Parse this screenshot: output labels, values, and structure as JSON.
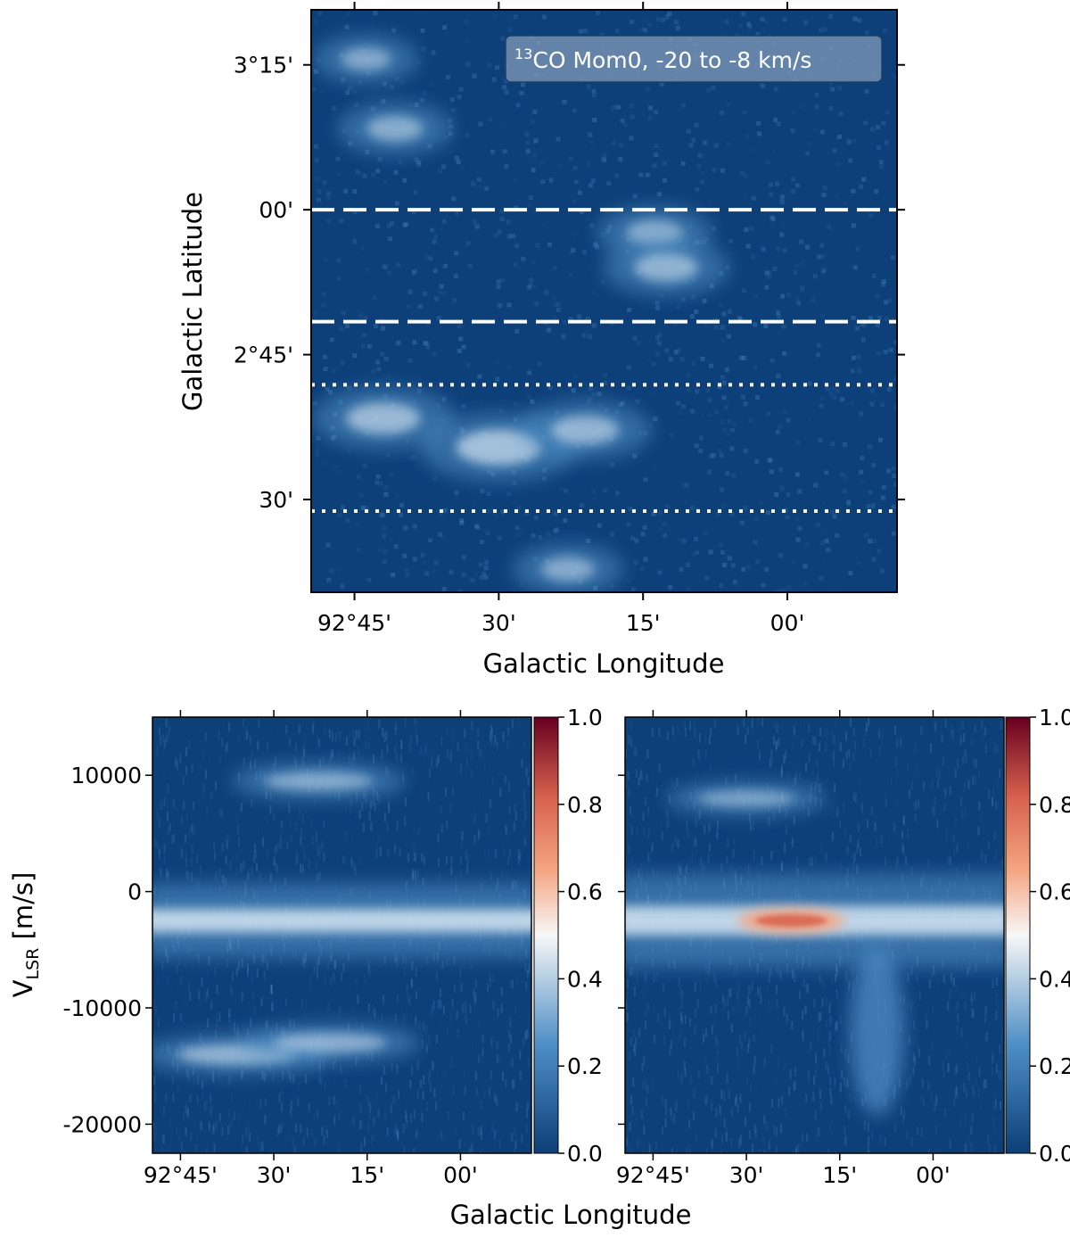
{
  "colors": {
    "map_low": "#0d3f78",
    "map_mid": "#4f8fc5",
    "map_high": "#d6e6f3",
    "white": "#f7f7f7",
    "red_mid": "#f4a582",
    "red_high": "#d6604d",
    "red_max": "#67001f"
  },
  "chart_data": [
    {
      "type": "heatmap",
      "title": "",
      "legend_text": {
        "sup": "13",
        "main": "CO Mom0, -20 to -8 km/s"
      },
      "legend_placement": "top-right",
      "xlabel": "Galactic Longitude",
      "ylabel": "Galactic Latitude",
      "x_ticks": [
        "92°45'",
        "30'",
        "15'",
        "00'"
      ],
      "y_ticks": [
        "3°15'",
        "00'",
        "2°45'",
        "30'"
      ],
      "x_tick_values_deg": [
        92.75,
        92.5,
        92.25,
        92.0
      ],
      "y_tick_values_deg": [
        3.25,
        3.0,
        2.75,
        2.5
      ],
      "xlim_deg": [
        92.825,
        91.81
      ],
      "ylim_deg": [
        2.34,
        3.345
      ],
      "horizontal_cuts": [
        {
          "style": "dashed",
          "latitude_deg": 3.0
        },
        {
          "style": "dashed",
          "latitude_deg": 2.807
        },
        {
          "style": "dotted",
          "latitude_deg": 2.698
        },
        {
          "style": "dotted",
          "latitude_deg": 2.48
        }
      ],
      "emission_features": [
        {
          "l_deg": 92.73,
          "b_deg": 3.26,
          "intensity": 0.35
        },
        {
          "l_deg": 92.68,
          "b_deg": 3.14,
          "intensity": 0.45
        },
        {
          "l_deg": 92.23,
          "b_deg": 2.96,
          "intensity": 0.45
        },
        {
          "l_deg": 92.21,
          "b_deg": 2.9,
          "intensity": 0.55
        },
        {
          "l_deg": 92.7,
          "b_deg": 2.64,
          "intensity": 0.7
        },
        {
          "l_deg": 92.5,
          "b_deg": 2.59,
          "intensity": 0.85
        },
        {
          "l_deg": 92.35,
          "b_deg": 2.62,
          "intensity": 0.6
        },
        {
          "l_deg": 92.38,
          "b_deg": 2.38,
          "intensity": 0.4
        }
      ]
    },
    {
      "type": "heatmap",
      "title": "",
      "xlabel": "Galactic Longitude",
      "ylabel_main": "V",
      "ylabel_sub": "LSR",
      "ylabel_tail": " [m/s]",
      "x_ticks": [
        "92°45'",
        "30'",
        "15'",
        "00'"
      ],
      "x_tick_values_deg": [
        92.75,
        92.5,
        92.25,
        92.0
      ],
      "y_ticks": [
        "10000",
        "0",
        "-10000",
        "-20000"
      ],
      "y_tick_values": [
        10000,
        0,
        -10000,
        -20000
      ],
      "xlim_deg": [
        92.825,
        91.81
      ],
      "ylim": [
        -22500,
        15000
      ],
      "colorbar": {
        "min": 0.0,
        "max": 1.0,
        "ticks": [
          "1.0",
          "0.8",
          "0.6",
          "0.4",
          "0.2",
          "0.0"
        ],
        "tick_values": [
          1.0,
          0.8,
          0.6,
          0.4,
          0.2,
          0.0
        ]
      },
      "features": [
        {
          "kind": "band",
          "v_center": -2500,
          "v_width": 2000,
          "intensity": 0.5
        },
        {
          "kind": "blob",
          "l_deg": 92.38,
          "v": 9500,
          "intensity": 0.35
        },
        {
          "kind": "blob",
          "l_deg": 92.6,
          "v": -14000,
          "intensity": 0.45
        },
        {
          "kind": "blob",
          "l_deg": 92.35,
          "v": -13000,
          "intensity": 0.4
        }
      ]
    },
    {
      "type": "heatmap",
      "title": "",
      "xlabel": "Galactic Longitude",
      "x_ticks": [
        "92°45'",
        "30'",
        "15'",
        "00'"
      ],
      "x_tick_values_deg": [
        92.75,
        92.5,
        92.25,
        92.0
      ],
      "y_tick_values": [
        10000,
        0,
        -10000,
        -20000
      ],
      "xlim_deg": [
        92.825,
        91.81
      ],
      "ylim": [
        -22500,
        15000
      ],
      "colorbar": {
        "min": 0.0,
        "max": 1.0,
        "ticks": [
          "1.0",
          "0.8",
          "0.6",
          "0.4",
          "0.2",
          "0.0"
        ],
        "tick_values": [
          1.0,
          0.8,
          0.6,
          0.4,
          0.2,
          0.0
        ]
      },
      "features": [
        {
          "kind": "band",
          "v_center": -2500,
          "v_width": 2500,
          "intensity": 0.5
        },
        {
          "kind": "peak",
          "l_deg": 92.38,
          "v": -2500,
          "intensity": 0.75
        },
        {
          "kind": "blob",
          "l_deg": 92.5,
          "v": 8000,
          "intensity": 0.25
        },
        {
          "kind": "tail",
          "l_deg": 92.15,
          "v": -12000,
          "intensity": 0.35
        }
      ]
    }
  ],
  "footer": {
    "xlabel": "Galactic Longitude"
  }
}
